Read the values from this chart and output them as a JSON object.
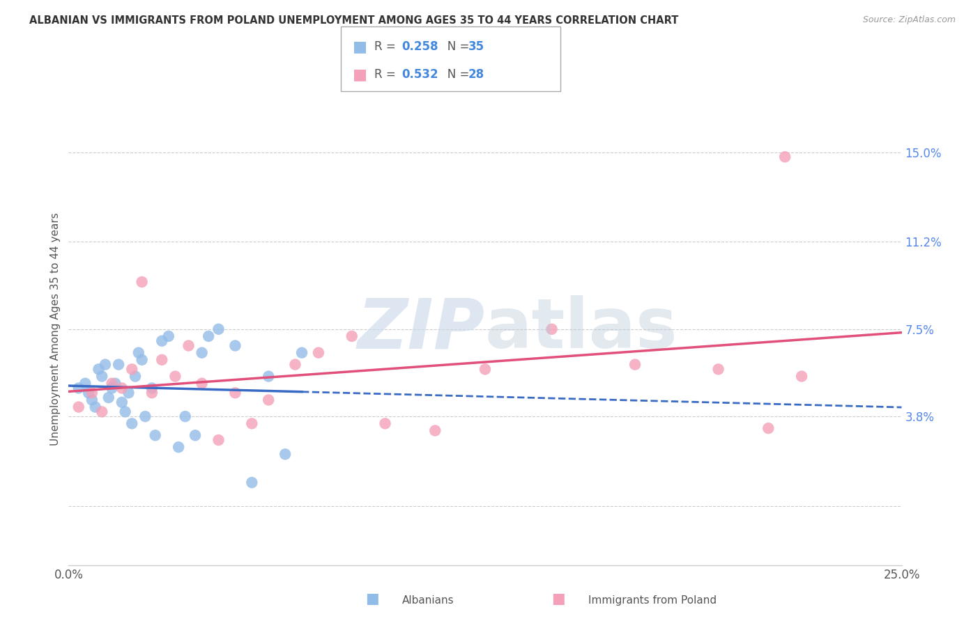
{
  "title": "ALBANIAN VS IMMIGRANTS FROM POLAND UNEMPLOYMENT AMONG AGES 35 TO 44 YEARS CORRELATION CHART",
  "source": "Source: ZipAtlas.com",
  "ylabel": "Unemployment Among Ages 35 to 44 years",
  "xlim": [
    0.0,
    0.25
  ],
  "ylim": [
    -0.025,
    0.175
  ],
  "yticks": [
    0.0,
    0.038,
    0.075,
    0.112,
    0.15
  ],
  "ytick_labels": [
    "",
    "3.8%",
    "7.5%",
    "11.2%",
    "15.0%"
  ],
  "xticks": [
    0.0,
    0.05,
    0.1,
    0.15,
    0.2,
    0.25
  ],
  "xtick_labels": [
    "0.0%",
    "",
    "",
    "",
    "",
    "25.0%"
  ],
  "legend_albanians_R": "0.258",
  "legend_albanians_N": "35",
  "legend_poland_R": "0.532",
  "legend_poland_N": "28",
  "blue_color": "#92bce8",
  "pink_color": "#f4a0b8",
  "blue_line_color": "#3a6bc4",
  "pink_line_color": "#e0507a",
  "watermark_zip": "ZIP",
  "watermark_atlas": "atlas",
  "albanians_x": [
    0.003,
    0.005,
    0.006,
    0.007,
    0.008,
    0.009,
    0.01,
    0.011,
    0.012,
    0.013,
    0.014,
    0.015,
    0.016,
    0.017,
    0.018,
    0.019,
    0.02,
    0.021,
    0.022,
    0.023,
    0.025,
    0.026,
    0.028,
    0.03,
    0.033,
    0.035,
    0.038,
    0.04,
    0.042,
    0.045,
    0.05,
    0.055,
    0.06,
    0.065,
    0.07
  ],
  "albanians_y": [
    0.05,
    0.052,
    0.048,
    0.045,
    0.042,
    0.058,
    0.055,
    0.06,
    0.046,
    0.05,
    0.052,
    0.06,
    0.044,
    0.04,
    0.048,
    0.035,
    0.055,
    0.065,
    0.062,
    0.038,
    0.05,
    0.03,
    0.07,
    0.072,
    0.025,
    0.038,
    0.03,
    0.065,
    0.072,
    0.075,
    0.068,
    0.01,
    0.055,
    0.022,
    0.065
  ],
  "poland_x": [
    0.003,
    0.007,
    0.01,
    0.013,
    0.016,
    0.019,
    0.022,
    0.025,
    0.028,
    0.032,
    0.036,
    0.04,
    0.045,
    0.05,
    0.055,
    0.06,
    0.068,
    0.075,
    0.085,
    0.095,
    0.11,
    0.125,
    0.145,
    0.17,
    0.195,
    0.21,
    0.215,
    0.22
  ],
  "poland_y": [
    0.042,
    0.048,
    0.04,
    0.052,
    0.05,
    0.058,
    0.095,
    0.048,
    0.062,
    0.055,
    0.068,
    0.052,
    0.028,
    0.048,
    0.035,
    0.045,
    0.06,
    0.065,
    0.072,
    0.035,
    0.032,
    0.058,
    0.075,
    0.06,
    0.058,
    0.033,
    0.148,
    0.055
  ]
}
